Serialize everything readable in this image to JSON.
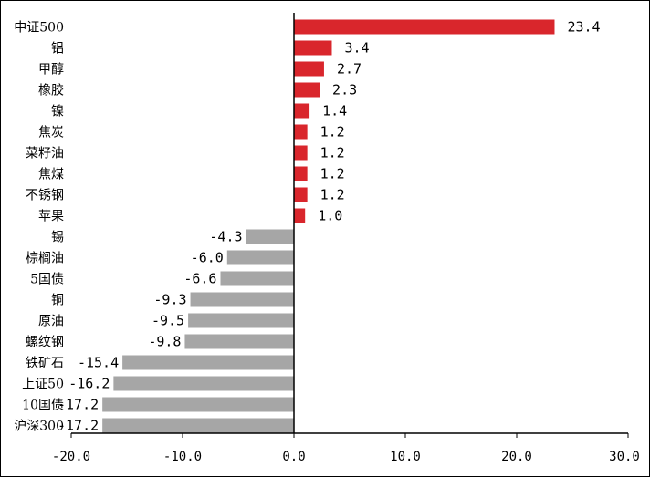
{
  "chart_data": {
    "type": "bar",
    "orientation": "horizontal",
    "title": "",
    "xlabel": "",
    "ylabel": "",
    "categories": [
      "中证500",
      "铝",
      "甲醇",
      "橡胶",
      "镍",
      "焦炭",
      "菜籽油",
      "焦煤",
      "不锈钢",
      "苹果",
      "锡",
      "棕榈油",
      "5国债",
      "铜",
      "原油",
      "螺纹钢",
      "铁矿石",
      "上证50",
      "10国债",
      "沪深300"
    ],
    "values": [
      23.4,
      3.4,
      2.7,
      2.3,
      1.4,
      1.2,
      1.2,
      1.2,
      1.2,
      1.0,
      -4.3,
      -6.0,
      -6.6,
      -9.3,
      -9.5,
      -9.8,
      -15.4,
      -16.2,
      -17.2,
      -17.2
    ],
    "value_labels": [
      "23.4",
      "3.4",
      "2.7",
      "2.3",
      "1.4",
      "1.2",
      "1.2",
      "1.2",
      "1.2",
      "1.0",
      "-4.3",
      "-6.0",
      "-6.6",
      "-9.3",
      "-9.5",
      "-9.8",
      "-15.4",
      "-16.2",
      "-17.2",
      "-17.2"
    ],
    "xlim": [
      -20,
      30
    ],
    "xticks": [
      -20,
      -10,
      0,
      10,
      20,
      30
    ],
    "xtick_labels": [
      "-20.0",
      "-10.0",
      "0.0",
      "10.0",
      "20.0",
      "30.0"
    ],
    "grid": false,
    "legend": "none",
    "colors": {
      "positive": "#d9262c",
      "negative": "#a6a6a6"
    }
  }
}
